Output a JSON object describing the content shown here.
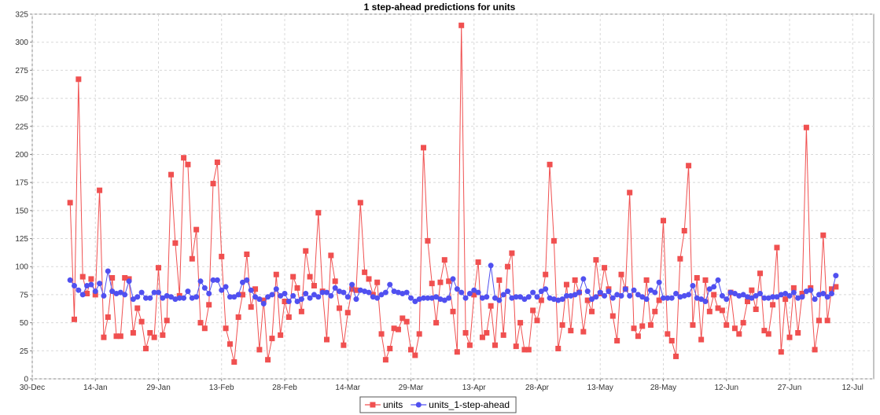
{
  "chart_data": {
    "type": "line",
    "title": "1 step-ahead predictions for units",
    "xlabel": "",
    "ylabel": "",
    "ylim": [
      0,
      325
    ],
    "y_ticks": [
      0,
      25,
      50,
      75,
      100,
      125,
      150,
      175,
      200,
      225,
      250,
      275,
      300,
      325
    ],
    "x_range": [
      "2015-12-30",
      "2016-07-17"
    ],
    "x_ticks": [
      {
        "date": "2015-12-30",
        "label": "30-Dec"
      },
      {
        "date": "2016-01-14",
        "label": "14-Jan"
      },
      {
        "date": "2016-01-29",
        "label": "29-Jan"
      },
      {
        "date": "2016-02-13",
        "label": "13-Feb"
      },
      {
        "date": "2016-02-28",
        "label": "28-Feb"
      },
      {
        "date": "2016-03-14",
        "label": "14-Mar"
      },
      {
        "date": "2016-03-29",
        "label": "29-Mar"
      },
      {
        "date": "2016-04-13",
        "label": "13-Apr"
      },
      {
        "date": "2016-04-28",
        "label": "28-Apr"
      },
      {
        "date": "2016-05-13",
        "label": "13-May"
      },
      {
        "date": "2016-05-28",
        "label": "28-May"
      },
      {
        "date": "2016-06-12",
        "label": "12-Jun"
      },
      {
        "date": "2016-06-27",
        "label": "27-Jun"
      },
      {
        "date": "2016-07-12",
        "label": "12-Jul"
      }
    ],
    "grid": true,
    "legend_position": "bottom-center",
    "x_start": "2016-01-08",
    "x_step_days": 1,
    "series": [
      {
        "name": "units",
        "color": "#f05050",
        "marker": "square",
        "values": [
          157,
          53,
          267,
          91,
          76,
          89,
          75,
          168,
          37,
          55,
          90,
          38,
          38,
          90,
          89,
          41,
          63,
          51,
          27,
          41,
          37,
          99,
          39,
          52,
          182,
          121,
          74,
          197,
          191,
          107,
          133,
          50,
          45,
          66,
          174,
          193,
          109,
          45,
          31,
          15,
          55,
          75,
          111,
          64,
          80,
          26,
          70,
          17,
          36,
          93,
          39,
          69,
          55,
          91,
          81,
          60,
          114,
          91,
          83,
          148,
          78,
          35,
          110,
          87,
          63,
          30,
          59,
          80,
          79,
          157,
          95,
          89,
          75,
          86,
          40,
          17,
          27,
          45,
          44,
          54,
          51,
          26,
          21,
          40,
          206,
          123,
          85,
          50,
          86,
          106,
          87,
          60,
          24,
          315,
          41,
          30,
          75,
          104,
          37,
          41,
          65,
          30,
          88,
          39,
          100,
          112,
          29,
          50,
          26,
          26,
          61,
          52,
          70,
          93,
          191,
          123,
          27,
          48,
          84,
          43,
          88,
          77,
          42,
          70,
          60,
          106,
          76,
          99,
          80,
          56,
          34,
          93,
          80,
          166,
          45,
          38,
          47,
          88,
          48,
          60,
          70,
          141,
          40,
          34,
          20,
          107,
          132,
          190,
          48,
          90,
          35,
          88,
          60,
          75,
          63,
          61,
          48,
          77,
          45,
          40,
          50,
          69,
          79,
          62,
          94,
          43,
          40,
          66,
          117,
          24,
          71,
          37,
          81,
          41,
          76,
          224,
          81,
          26,
          52,
          128,
          52,
          80,
          82
        ]
      },
      {
        "name": "units_1-step-ahead",
        "color": "#5050f0",
        "marker": "circle",
        "values": [
          88,
          83,
          79,
          75,
          83,
          84,
          78,
          85,
          74,
          96,
          78,
          76,
          77,
          75,
          87,
          71,
          73,
          77,
          72,
          72,
          77,
          77,
          72,
          74,
          73,
          71,
          72,
          72,
          78,
          72,
          73,
          87,
          81,
          76,
          88,
          88,
          79,
          82,
          73,
          73,
          75,
          86,
          88,
          79,
          73,
          71,
          67,
          73,
          75,
          80,
          74,
          76,
          69,
          74,
          69,
          71,
          76,
          72,
          75,
          73,
          77,
          77,
          74,
          81,
          78,
          77,
          73,
          84,
          71,
          79,
          78,
          77,
          73,
          72,
          75,
          77,
          84,
          78,
          77,
          76,
          77,
          72,
          69,
          71,
          72,
          72,
          72,
          73,
          71,
          70,
          72,
          89,
          80,
          77,
          72,
          76,
          79,
          77,
          72,
          73,
          101,
          72,
          70,
          75,
          78,
          72,
          73,
          73,
          71,
          73,
          77,
          73,
          78,
          80,
          72,
          71,
          70,
          71,
          74,
          74,
          75,
          77,
          89,
          78,
          71,
          73,
          77,
          74,
          78,
          72,
          75,
          74,
          80,
          74,
          79,
          75,
          73,
          71,
          79,
          77,
          86,
          72,
          72,
          72,
          76,
          73,
          74,
          75,
          83,
          72,
          71,
          69,
          80,
          82,
          88,
          74,
          71,
          77,
          76,
          74,
          75,
          73,
          72,
          74,
          76,
          72,
          72,
          73,
          73,
          75,
          76,
          74,
          77,
          72,
          73,
          78,
          79,
          71,
          75,
          76,
          73,
          76,
          92
        ]
      }
    ]
  }
}
